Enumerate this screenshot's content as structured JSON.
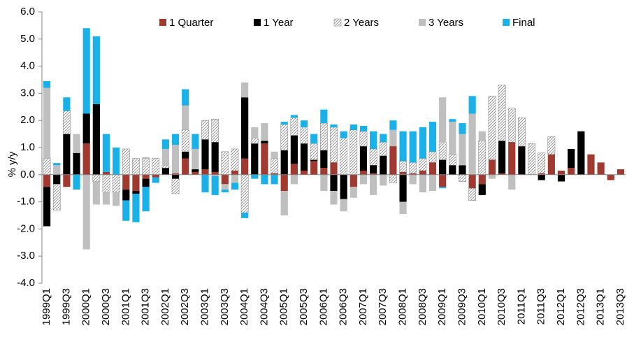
{
  "chart_data": {
    "type": "stacked_bar",
    "y_axis_label": "% y/y",
    "categories": [
      "1999Q1",
      null,
      "1999Q3",
      null,
      "2000Q1",
      null,
      "2000Q3",
      null,
      "2001Q1",
      null,
      "2001Q3",
      null,
      "2002Q1",
      null,
      "2002Q3",
      null,
      "2003Q1",
      null,
      "2003Q3",
      null,
      "2004Q1",
      null,
      "2004Q3",
      null,
      "2005Q1",
      null,
      "2005Q3",
      null,
      "2006Q1",
      null,
      "2006Q3",
      null,
      "2007Q1",
      null,
      "2007Q3",
      null,
      "2008Q1",
      null,
      "2008Q3",
      null,
      "2009Q1",
      null,
      "2009Q3",
      null,
      "2010Q1",
      null,
      "2010Q3",
      null,
      "2011Q1",
      null,
      "2011Q3",
      null,
      "2012Q1",
      null,
      "2012Q3",
      null,
      "2013Q1",
      null,
      "2013Q3"
    ],
    "series": [
      {
        "name": "1 Quarter",
        "color": "#a0392f",
        "values": [
          -0.45,
          0,
          -0.45,
          0,
          1.15,
          0,
          0.1,
          0,
          -0.55,
          -0.6,
          -0.15,
          -0.1,
          0,
          0.05,
          0.6,
          0.1,
          0.2,
          0.1,
          -0.35,
          0.15,
          0.6,
          0,
          1.15,
          0.05,
          -0.6,
          0.4,
          0.15,
          0.5,
          0.25,
          0.45,
          0,
          -0.45,
          0.15,
          0.05,
          0,
          1.05,
          0.1,
          0.05,
          0.15,
          0.45,
          -0.45,
          0,
          0,
          -0.5,
          -0.35,
          0.55,
          0.05,
          1.2,
          0,
          0,
          0.05,
          0.75,
          0.15,
          0.25,
          0,
          0.75,
          0.45,
          -0.2,
          0.2
        ]
      },
      {
        "name": "1 Year",
        "color": "#000000",
        "values": [
          -1.45,
          -0.35,
          1.5,
          0.8,
          1.1,
          2.6,
          0,
          0,
          -0.4,
          -0.1,
          -0.3,
          0,
          0.25,
          -0.15,
          0.25,
          0.1,
          1.1,
          1.1,
          0,
          0,
          2.25,
          1.15,
          0.1,
          0,
          0.9,
          1.05,
          1.0,
          0.05,
          0.65,
          -0.6,
          -0.9,
          0,
          0.9,
          0.3,
          0.7,
          0,
          -1.0,
          0,
          0,
          0,
          0.55,
          0.35,
          0.35,
          0,
          -0.4,
          0,
          1.2,
          0,
          1.05,
          0,
          -0.2,
          0,
          -0.25,
          0.7,
          1.6,
          0,
          0,
          0,
          0
        ]
      },
      {
        "name": "2 Years",
        "color": "#7f7f7f",
        "pattern": "hatch",
        "values": [
          0.6,
          -0.95,
          0.85,
          0,
          0,
          -0.25,
          -0.65,
          -0.65,
          0.95,
          0.6,
          0.6,
          0.6,
          0.1,
          -0.55,
          0.8,
          0,
          0.7,
          0.85,
          0.85,
          0.8,
          -1.4,
          0.2,
          0,
          0.55,
          0.95,
          0.65,
          0.6,
          0.6,
          1.0,
          1.3,
          1.35,
          1.65,
          0.55,
          0.6,
          0.5,
          -0.3,
          0.4,
          0.4,
          0.45,
          0.4,
          0.65,
          0.4,
          -0.25,
          -0.45,
          1.25,
          2.35,
          2.05,
          1.25,
          1.05,
          1.15,
          0.75,
          0.65,
          0,
          0,
          0,
          0,
          0,
          0,
          0
        ]
      },
      {
        "name": "3 Years",
        "color": "#bfbfbf",
        "values": [
          2.6,
          0.35,
          0,
          0.7,
          -2.75,
          -0.85,
          -0.45,
          -0.5,
          0,
          0,
          0.05,
          0,
          0.6,
          1.05,
          0.9,
          0.75,
          0,
          -0.05,
          -0.2,
          -0.3,
          0.55,
          0.4,
          0.65,
          0.25,
          -0.9,
          -0.35,
          0,
          0,
          -0.6,
          -0.5,
          -0.45,
          -0.4,
          -0.35,
          -0.75,
          -0.4,
          0.6,
          -0.45,
          -0.35,
          -0.65,
          -0.6,
          1.65,
          1.2,
          1.15,
          2.25,
          0.35,
          -0.15,
          0,
          -0.55,
          0,
          0,
          0,
          0,
          0,
          0,
          0,
          0,
          0,
          0,
          0
        ]
      },
      {
        "name": "Final",
        "color": "#1ab0e8",
        "values": [
          0.25,
          0.08,
          0.5,
          -0.55,
          3.15,
          2.5,
          1.4,
          1.0,
          -0.75,
          -1.05,
          -0.9,
          -0.2,
          0.35,
          0.4,
          0.6,
          0.55,
          -0.65,
          -0.7,
          -0.1,
          -0.25,
          -0.2,
          -0.15,
          -0.35,
          -0.35,
          0.1,
          0.1,
          0.25,
          0.35,
          0.5,
          0.1,
          0.25,
          0.2,
          0.2,
          0.65,
          0.3,
          0.35,
          1.1,
          1.15,
          1.15,
          1.1,
          -0.05,
          0.1,
          0.4,
          0.65,
          0,
          0,
          0,
          0,
          0,
          0,
          0,
          0,
          0,
          0,
          0,
          0,
          0,
          0,
          0
        ]
      }
    ],
    "ylim": [
      -4,
      6
    ],
    "yticks": [
      {
        "value": -4,
        "label": "-4.0"
      },
      {
        "value": -3,
        "label": "-3.0"
      },
      {
        "value": -2,
        "label": "-2.0"
      },
      {
        "value": -1,
        "label": "-1.0"
      },
      {
        "value": 0,
        "label": "0.0"
      },
      {
        "value": 1,
        "label": "1.0"
      },
      {
        "value": 2,
        "label": "2.0"
      },
      {
        "value": 3,
        "label": "3.0"
      },
      {
        "value": 4,
        "label": "4.0"
      },
      {
        "value": 5,
        "label": "5.0"
      },
      {
        "value": 6,
        "label": "6.0"
      }
    ],
    "legend": "top"
  }
}
